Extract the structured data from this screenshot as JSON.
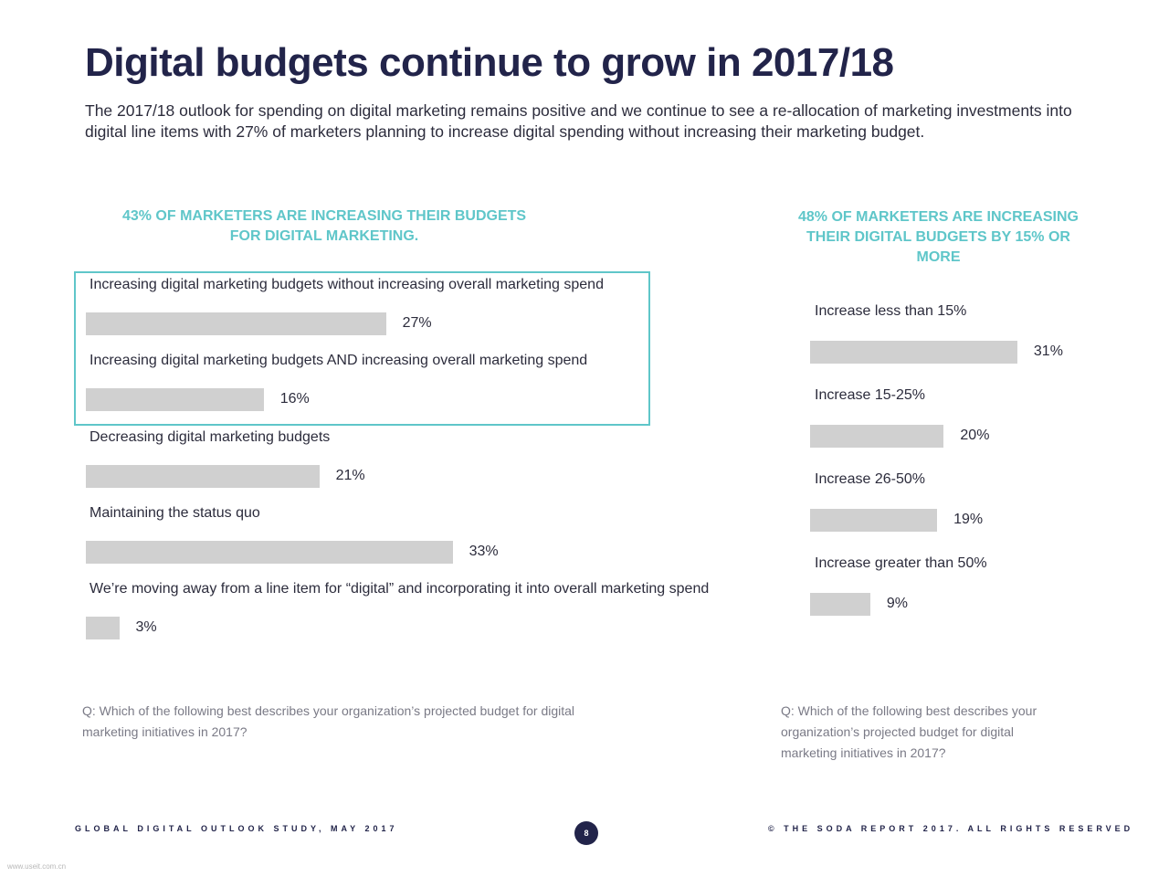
{
  "page": {
    "title": "Digital budgets continue to grow in 2017/18",
    "intro": "The 2017/18 outlook for spending on digital marketing remains positive and we continue to see a re-allocation of marketing investments into digital line items with 27% of marketers planning to increase digital spending without increasing their marketing budget."
  },
  "chart_data": [
    {
      "type": "bar",
      "orientation": "horizontal",
      "title": "43% OF MARKETERS ARE INCREASING THEIR BUDGETS FOR DIGITAL MARKETING.",
      "categories": [
        "Increasing digital marketing budgets without increasing overall marketing spend",
        "Increasing digital marketing budgets AND increasing overall marketing spend",
        "Decreasing digital marketing budgets",
        "Maintaining the status quo",
        "We’re moving away from a line item for “digital” and incorporating it into overall marketing spend"
      ],
      "values": [
        27,
        16,
        21,
        33,
        3
      ],
      "value_labels": [
        "27%",
        "16%",
        "21%",
        "33%",
        "3%"
      ],
      "highlighted_categories": [
        0,
        1
      ],
      "bar_color": "#d0d0d0",
      "highlight_color": "#5fc6c9",
      "question": "Q: Which of the following best describes your organization’s projected budget for digital marketing initiatives in 2017?"
    },
    {
      "type": "bar",
      "orientation": "horizontal",
      "title": "48% OF MARKETERS ARE INCREASING THEIR DIGITAL BUDGETS BY 15% OR MORE",
      "categories": [
        "Increase less than 15%",
        "Increase 15-25%",
        "Increase 26-50%",
        "Increase greater than 50%"
      ],
      "values": [
        31,
        20,
        19,
        9
      ],
      "value_labels": [
        "31%",
        "20%",
        "19%",
        "9%"
      ],
      "bar_color": "#d0d0d0",
      "question": "Q: Which of the following best describes your organization’s projected budget for digital marketing initiatives in 2017?"
    }
  ],
  "footer": {
    "left": "GLOBAL DIGITAL OUTLOOK STUDY, MAY 2017",
    "page_number": "8",
    "right": "© THE SODA REPORT 2017. ALL RIGHTS RESERVED"
  },
  "watermark": "www.useit.com.cn"
}
